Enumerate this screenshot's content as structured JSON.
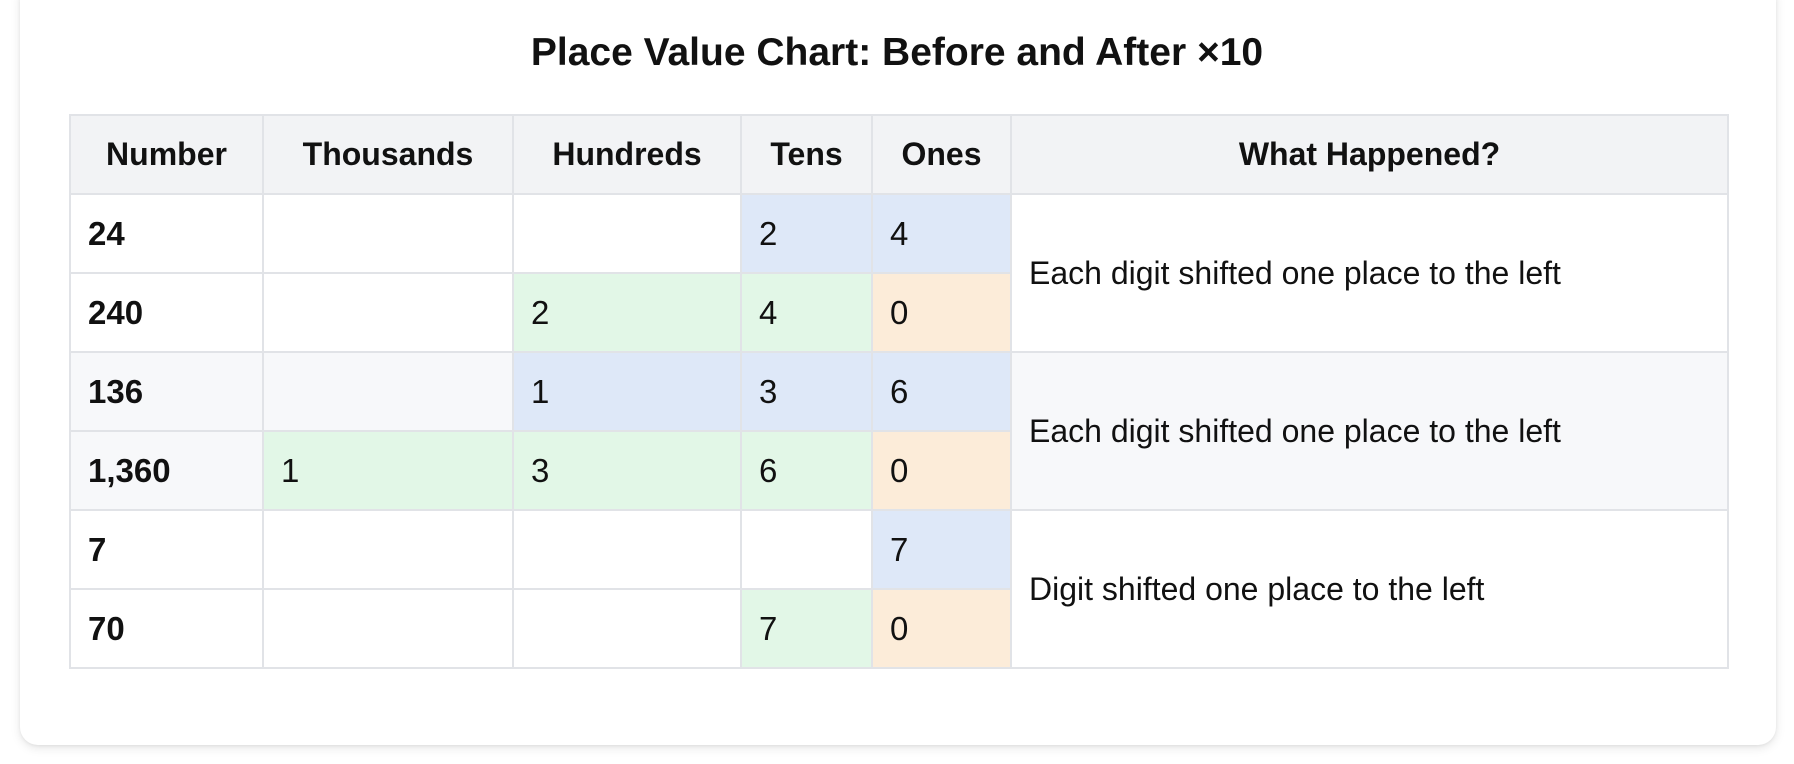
{
  "title": "Place Value Chart: Before and After ×10",
  "headers": [
    "Number",
    "Thousands",
    "Hundreds",
    "Tens",
    "Ones",
    "What Happened?"
  ],
  "rows": [
    {
      "number": "24",
      "thousands": "",
      "hundreds": "",
      "tens": "2",
      "ones": "4"
    },
    {
      "number": "240",
      "thousands": "",
      "hundreds": "2",
      "tens": "4",
      "ones": "0"
    },
    {
      "number": "136",
      "thousands": "",
      "hundreds": "1",
      "tens": "3",
      "ones": "6"
    },
    {
      "number": "1,360",
      "thousands": "1",
      "hundreds": "3",
      "tens": "6",
      "ones": "0"
    },
    {
      "number": "7",
      "thousands": "",
      "hundreds": "",
      "tens": "",
      "ones": "7"
    },
    {
      "number": "70",
      "thousands": "",
      "hundreds": "",
      "tens": "7",
      "ones": "0"
    }
  ],
  "notes": [
    "Each digit shifted one place to the left",
    "Each digit shifted one place to the left",
    "Digit shifted one place to the left"
  ],
  "colors": {
    "original_digits": "#dee8f8",
    "shifted_digits": "#e2f7e7",
    "new_zero": "#fcecd9",
    "header_bg": "#f2f3f5",
    "alt_row_bg": "#f7f8fa"
  }
}
